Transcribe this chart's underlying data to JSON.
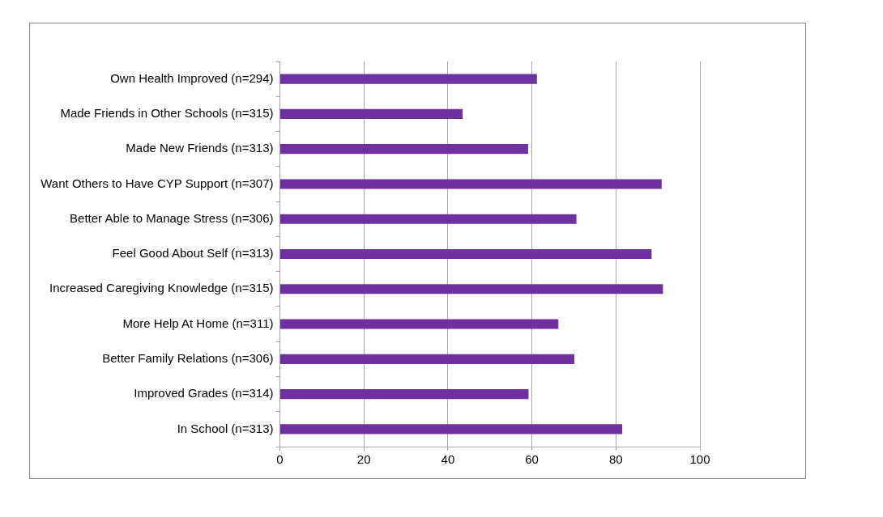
{
  "chart_data": {
    "type": "bar",
    "orientation": "horizontal",
    "categories": [
      "Own Health Improved (n=294)",
      "Made Friends in Other Schools (n=315)",
      "Made New Friends (n=313)",
      "Want Others to Have CYP Support (n=307)",
      "Better Able to Manage Stress (n=306)",
      "Feel Good About Self (n=313)",
      "Increased Caregiving Knowledge (n=315)",
      "More Help At Home (n=311)",
      "Better Family Relations (n=306)",
      "Improved Grades (n=314)",
      "In School (n=313)"
    ],
    "values": [
      61.2,
      43.5,
      59.1,
      90.9,
      70.6,
      88.5,
      91.2,
      66.3,
      70.1,
      59.2,
      81.5
    ],
    "color": "#7030a0",
    "xlim": [
      0,
      100
    ],
    "xticks": [
      0,
      20,
      40,
      60,
      80,
      100
    ],
    "grid": "x"
  }
}
